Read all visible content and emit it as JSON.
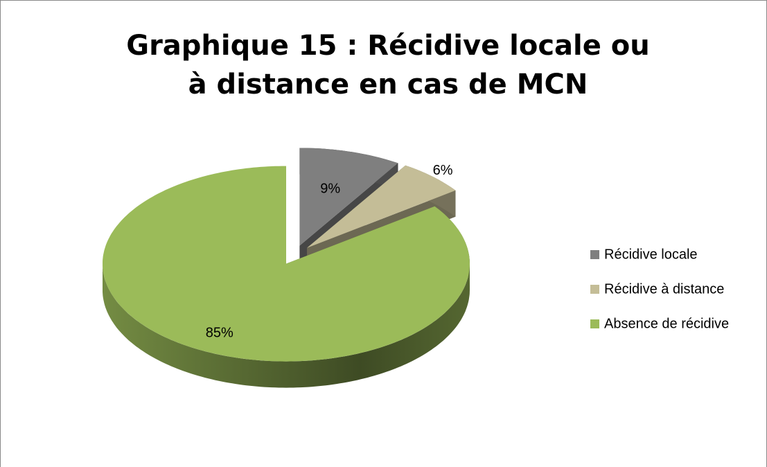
{
  "chart_data": {
    "type": "pie",
    "title": "Graphique 15 : Récidive locale ou à distance en cas de MCN",
    "categories": [
      "Récidive locale",
      "Récidive à distance",
      "Absence de récidive"
    ],
    "values": [
      9,
      6,
      85
    ],
    "value_labels": [
      "9%",
      "6%",
      "85%"
    ],
    "colors": [
      "#7f7f7f",
      "#c4bd97",
      "#9bbb59"
    ],
    "legend": "right"
  }
}
